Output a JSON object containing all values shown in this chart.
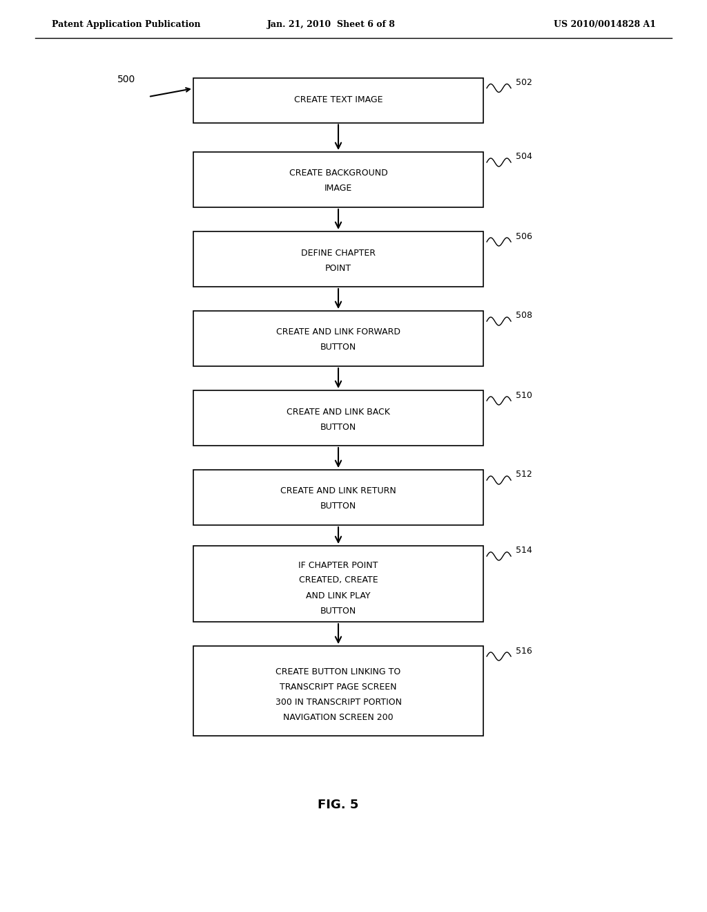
{
  "header_left": "Patent Application Publication",
  "header_mid": "Jan. 21, 2010  Sheet 6 of 8",
  "header_right": "US 2010/0014828 A1",
  "figure_label": "FIG. 5",
  "start_label": "500",
  "bg_color": "#ffffff",
  "box_color": "#ffffff",
  "box_edge_color": "#000000",
  "text_color": "#000000",
  "boxes": [
    {
      "id": "502",
      "label": "CREATE TEXT IMAGE",
      "lines": [
        "CREATE TEXT IMAGE"
      ]
    },
    {
      "id": "504",
      "label": "CREATE BACKGROUND IMAGE",
      "lines": [
        "CREATE BACKGROUND",
        "IMAGE"
      ]
    },
    {
      "id": "506",
      "label": "DEFINE CHAPTER POINT",
      "lines": [
        "DEFINE CHAPTER",
        "POINT"
      ]
    },
    {
      "id": "508",
      "label": "CREATE AND LINK FORWARD BUTTON",
      "lines": [
        "CREATE AND LINK FORWARD",
        "BUTTON"
      ]
    },
    {
      "id": "510",
      "label": "CREATE AND LINK BACK BUTTON",
      "lines": [
        "CREATE AND LINK BACK",
        "BUTTON"
      ]
    },
    {
      "id": "512",
      "label": "CREATE AND LINK RETURN BUTTON",
      "lines": [
        "CREATE AND LINK RETURN",
        "BUTTON"
      ]
    },
    {
      "id": "514",
      "label": "IF CHAPTER POINT CREATED CREATE AND LINK PLAY BUTTON",
      "lines": [
        "IF CHAPTER POINT",
        "CREATED, CREATE",
        "AND LINK PLAY",
        "BUTTON"
      ]
    },
    {
      "id": "516",
      "label": "CREATE BUTTON LINKING TO TRANSCRIPT PAGE SCREEN 300 IN TRANSCRIPT PORTION NAVIGATION SCREEN 200",
      "lines": [
        "CREATE BUTTON LINKING TO",
        "TRANSCRIPT PAGE SCREEN",
        "300 IN TRANSCRIPT PORTION",
        "NAVIGATION SCREEN 200"
      ]
    }
  ]
}
